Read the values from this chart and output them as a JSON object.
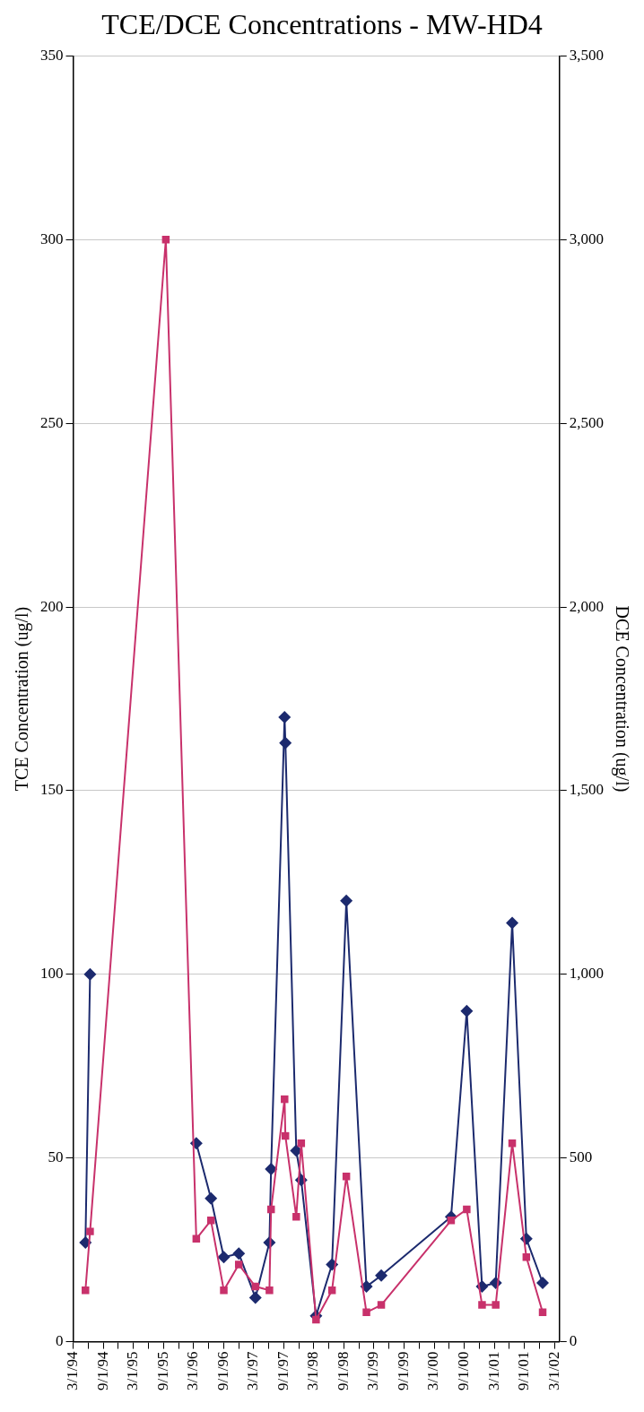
{
  "chart_data": {
    "type": "line",
    "title": "TCE/DCE Concentrations - MW-HD4",
    "ylabel": "TCE Concentration (ug/l)",
    "y2label": "DCE Concentration (ug/l)",
    "x": [
      "1994-05-15",
      "1994-06-12",
      "1995-09-15",
      "1996-03-18",
      "1996-06-15",
      "1996-09-01",
      "1996-12-01",
      "1997-03-12",
      "1997-06-05",
      "1997-06-15",
      "1997-09-05",
      "1997-09-10",
      "1997-11-15",
      "1997-12-15",
      "1998-03-15",
      "1998-06-20",
      "1998-09-15",
      "1999-01-15",
      "1999-04-15",
      "2000-06-12",
      "2000-09-15",
      "2000-12-17",
      "2001-03-10",
      "2001-06-18",
      "2001-09-12",
      "2001-12-20"
    ],
    "xlim": [
      "1994-03-01",
      "2002-04-01"
    ],
    "xticks": [
      {
        "value": "1994-03-01",
        "label": "3/1/94"
      },
      {
        "value": "1994-06-01",
        "label": null
      },
      {
        "value": "1994-09-01",
        "label": "9/1/94"
      },
      {
        "value": "1994-12-01",
        "label": null
      },
      {
        "value": "1995-03-01",
        "label": "3/1/95"
      },
      {
        "value": "1995-06-01",
        "label": null
      },
      {
        "value": "1995-09-01",
        "label": "9/1/95"
      },
      {
        "value": "1995-12-01",
        "label": null
      },
      {
        "value": "1996-03-01",
        "label": "3/1/96"
      },
      {
        "value": "1996-06-01",
        "label": null
      },
      {
        "value": "1996-09-01",
        "label": "9/1/96"
      },
      {
        "value": "1996-12-01",
        "label": null
      },
      {
        "value": "1997-03-01",
        "label": "3/1/97"
      },
      {
        "value": "1997-06-01",
        "label": null
      },
      {
        "value": "1997-09-01",
        "label": "9/1/97"
      },
      {
        "value": "1997-12-01",
        "label": null
      },
      {
        "value": "1998-03-01",
        "label": "3/1/98"
      },
      {
        "value": "1998-06-01",
        "label": null
      },
      {
        "value": "1998-09-01",
        "label": "9/1/98"
      },
      {
        "value": "1998-12-01",
        "label": null
      },
      {
        "value": "1999-03-01",
        "label": "3/1/99"
      },
      {
        "value": "1999-06-01",
        "label": null
      },
      {
        "value": "1999-09-01",
        "label": "9/1/99"
      },
      {
        "value": "1999-12-01",
        "label": null
      },
      {
        "value": "2000-03-01",
        "label": "3/1/00"
      },
      {
        "value": "2000-06-01",
        "label": null
      },
      {
        "value": "2000-09-01",
        "label": "9/1/00"
      },
      {
        "value": "2000-12-01",
        "label": null
      },
      {
        "value": "2001-03-01",
        "label": "3/1/01"
      },
      {
        "value": "2001-06-01",
        "label": null
      },
      {
        "value": "2001-09-01",
        "label": "9/1/01"
      },
      {
        "value": "2001-12-01",
        "label": null
      },
      {
        "value": "2002-03-01",
        "label": "3/1/02"
      }
    ],
    "ylim": [
      0,
      350
    ],
    "yticks": [
      0,
      50,
      100,
      150,
      200,
      250,
      300,
      350
    ],
    "y2lim": [
      0,
      3500
    ],
    "y2ticks": [
      0,
      500,
      {
        "value": 1000,
        "label": "1,000"
      },
      {
        "value": 1500,
        "label": "1,500"
      },
      {
        "value": 2000,
        "label": "2,000"
      },
      {
        "value": 2500,
        "label": "2,500"
      },
      {
        "value": 3000,
        "label": "3,000"
      },
      {
        "value": 3500,
        "label": "3,500"
      }
    ],
    "grid": "y",
    "legend": false,
    "series": [
      {
        "color": "#1c2a6e",
        "marker": "diamond",
        "values": [
          27,
          100,
          null,
          54,
          39,
          23,
          24,
          12,
          27,
          47,
          170,
          163,
          52,
          44,
          7,
          21,
          120,
          15,
          18,
          34,
          90,
          15,
          16,
          114,
          28,
          16
        ]
      },
      {
        "color": "#c8316b",
        "marker": "square",
        "axis": "y2",
        "values": [
          140,
          300,
          3000,
          280,
          330,
          140,
          210,
          150,
          140,
          360,
          660,
          560,
          340,
          540,
          60,
          140,
          450,
          80,
          100,
          330,
          360,
          100,
          100,
          540,
          230,
          80
        ]
      }
    ]
  }
}
